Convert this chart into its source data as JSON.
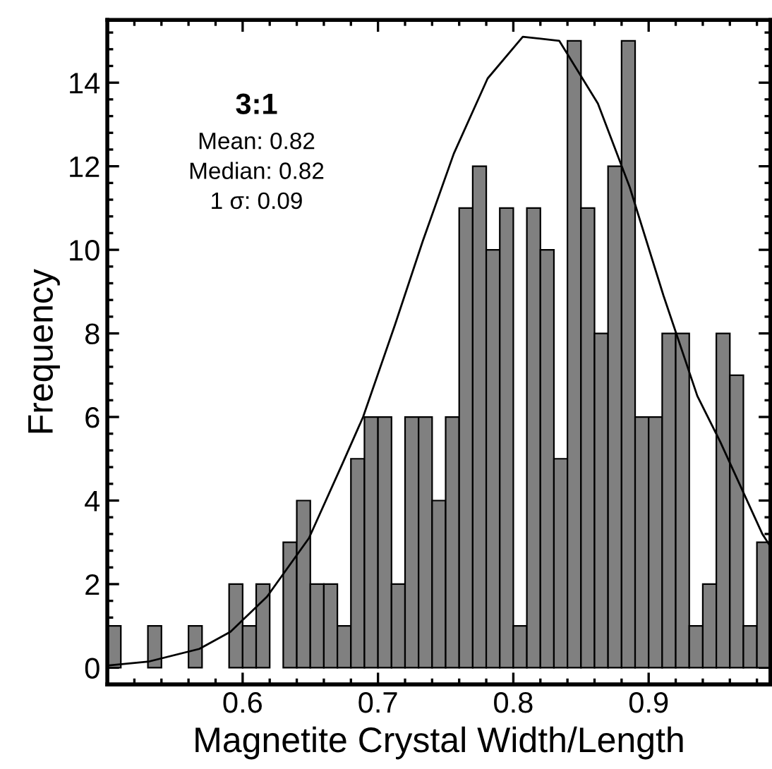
{
  "chart_data": {
    "type": "histogram",
    "xlabel": "Magnetite Crystal Width/Length",
    "ylabel": "Frequency",
    "bins": [
      0.5,
      0.51,
      0.52,
      0.53,
      0.54,
      0.55,
      0.56,
      0.57,
      0.58,
      0.59,
      0.6,
      0.61,
      0.62,
      0.63,
      0.64,
      0.65,
      0.66,
      0.67,
      0.68,
      0.69,
      0.7,
      0.71,
      0.72,
      0.73,
      0.74,
      0.75,
      0.76,
      0.77,
      0.78,
      0.79,
      0.8,
      0.81,
      0.82,
      0.83,
      0.84,
      0.85,
      0.86,
      0.87,
      0.88,
      0.89,
      0.9,
      0.91,
      0.92,
      0.93,
      0.94,
      0.95,
      0.96,
      0.97,
      0.98,
      0.99
    ],
    "values": [
      1,
      0,
      0,
      1,
      0,
      0,
      1,
      0,
      0,
      2,
      1,
      2,
      0,
      3,
      4,
      2,
      2,
      1,
      5,
      6,
      6,
      2,
      6,
      6,
      4,
      6,
      11,
      12,
      10,
      11,
      1,
      11,
      10,
      5,
      15,
      11,
      8,
      12,
      15,
      6,
      6,
      8,
      8,
      1,
      2,
      8,
      7,
      1,
      3
    ],
    "color": "#808080",
    "series": [
      {
        "type": "line",
        "color": "#000000",
        "x": [
          0.5,
          0.531,
          0.568,
          0.591,
          0.618,
          0.649,
          0.674,
          0.689,
          0.7125,
          0.733,
          0.756,
          0.781,
          0.807,
          0.834,
          0.8625,
          0.886,
          0.911,
          0.936,
          0.953,
          0.984,
          0.99
        ],
        "values": [
          0.05,
          0.15,
          0.45,
          0.86,
          1.7,
          3.1,
          4.9,
          6.0,
          8.2,
          10.2,
          12.3,
          14.1,
          15.1,
          15.0,
          13.5,
          11.5,
          8.9,
          6.5,
          5.4,
          3.2,
          2.9
        ]
      }
    ],
    "annotations": [
      "3:1",
      "Mean: 0.82",
      "Median: 0.82",
      "1 σ: 0.09"
    ],
    "xlim": [
      0.5,
      0.99
    ],
    "ylim": [
      -0.4,
      15.5
    ],
    "xticks": [
      0.6,
      0.7,
      0.8,
      0.9
    ],
    "yticks": [
      0,
      2,
      4,
      6,
      8,
      10,
      12,
      14
    ],
    "grid": false,
    "legend": false
  }
}
